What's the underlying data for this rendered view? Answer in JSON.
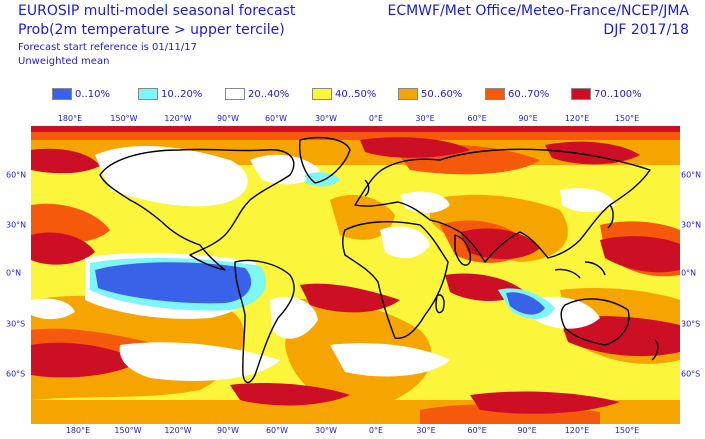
{
  "header": {
    "title": "EUROSIP multi-model seasonal forecast",
    "subtitle": "Prob(2m temperature > upper tercile)",
    "start_reference": "Forecast start reference is 01/11/17",
    "weighting": "Unweighted mean",
    "centres": "ECMWF/Met Office/Meteo-France/NCEP/JMA",
    "season": "DJF 2017/18"
  },
  "legend": [
    {
      "label": "0..10%",
      "color": "#3a62e9"
    },
    {
      "label": "10..20%",
      "color": "#7ff6f6"
    },
    {
      "label": "20..40%",
      "color": "#ffffff"
    },
    {
      "label": "40..50%",
      "color": "#fbf53c"
    },
    {
      "label": "50..60%",
      "color": "#f6a500"
    },
    {
      "label": "60..70%",
      "color": "#f55a0c"
    },
    {
      "label": "70..100%",
      "color": "#cc0f24"
    }
  ],
  "axes": {
    "lon_labels": [
      "180°E",
      "150°W",
      "120°W",
      "90°W",
      "60°W",
      "30°W",
      "0°E",
      "30°E",
      "60°E",
      "90°E",
      "120°E",
      "150°E"
    ],
    "lat_labels": [
      "60°N",
      "30°N",
      "0°N",
      "30°S",
      "60°S"
    ]
  }
}
